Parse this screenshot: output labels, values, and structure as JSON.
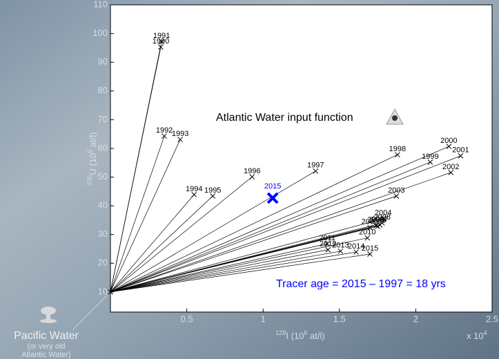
{
  "chart_data": {
    "type": "scatter",
    "text_main": "Atlantic Water input function",
    "text_age": "Tracer age = 2015 – 1997 = 18 yrs",
    "xlabel": [
      "129",
      "I (10",
      "6",
      " at/l)"
    ],
    "ylabel": [
      "235",
      "U (10",
      "6",
      " at/l)"
    ],
    "x_multiplier": [
      "x 10",
      "4"
    ],
    "xlim": [
      0,
      2.5
    ],
    "xticks": [
      0.5,
      1,
      1.5,
      2,
      2.5
    ],
    "ylim": [
      3,
      110
    ],
    "yticks": [
      10,
      20,
      30,
      40,
      50,
      60,
      70,
      80,
      90,
      100,
      110
    ],
    "color": "#000000",
    "source_point": {
      "x": 0,
      "y": 10,
      "label": "Pacific Water",
      "note": [
        "(or very old",
        "Atlantic Water)"
      ]
    },
    "highlight": {
      "label": "2015",
      "x": 1.063,
      "y": 42.7,
      "color": "#0000ff"
    },
    "categories": [
      "1990",
      "1991",
      "1992",
      "1993",
      "1994",
      "1995",
      "1996",
      "1997",
      "1998",
      "1999",
      "2000",
      "2001",
      "2002",
      "2003",
      "2004",
      "2005",
      "2006",
      "2007",
      "2008",
      "2009",
      "2010",
      "2011",
      "2012",
      "2013",
      "2014",
      "2015"
    ],
    "x": [
      0.33,
      0.335,
      0.353,
      0.457,
      0.548,
      0.67,
      0.928,
      1.344,
      1.88,
      2.095,
      2.217,
      2.294,
      2.23,
      1.873,
      1.787,
      1.7,
      1.74,
      1.765,
      1.78,
      1.75,
      1.683,
      1.42,
      1.425,
      1.507,
      1.61,
      1.7
    ],
    "values": [
      95.3,
      97.2,
      64.3,
      63.1,
      43.9,
      43.4,
      50.1,
      52.1,
      57.8,
      55.2,
      60.7,
      57.4,
      51.6,
      43.4,
      35.5,
      32.4,
      33.1,
      33.3,
      34.0,
      32.8,
      28.8,
      26.8,
      24.7,
      24.2,
      23.9,
      23.2
    ]
  }
}
